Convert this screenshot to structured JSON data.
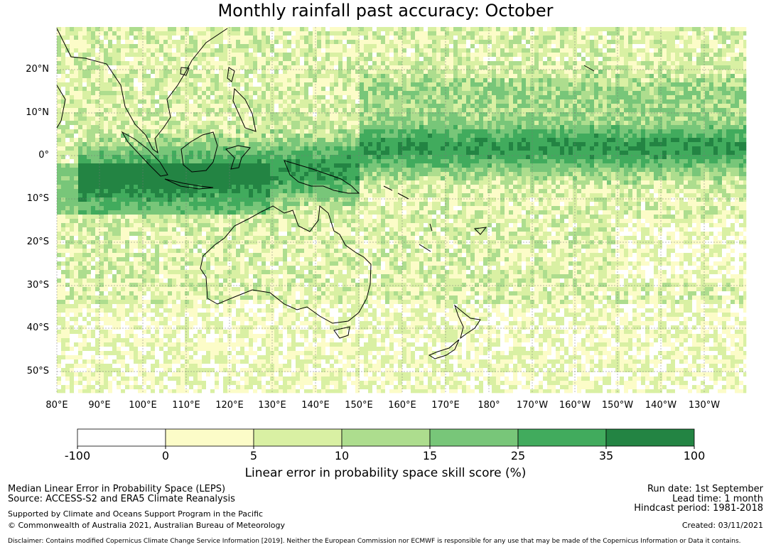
{
  "title": "Monthly rainfall past accuracy: October",
  "latitude_labels": [
    "20°N",
    "10°N",
    "0°",
    "10°S",
    "20°S",
    "30°S",
    "40°S",
    "50°S"
  ],
  "longitude_labels": [
    "80°E",
    "90°E",
    "100°E",
    "110°E",
    "120°E",
    "130°E",
    "140°E",
    "150°E",
    "160°E",
    "170°E",
    "180°",
    "170°W",
    "160°W",
    "150°W",
    "140°W",
    "130°W"
  ],
  "colorbar": {
    "title": "Linear error in probability space skill score (%)",
    "ticks": [
      "-100",
      "0",
      "5",
      "10",
      "15",
      "25",
      "35",
      "100"
    ],
    "colors": [
      "#ffffff",
      "#fcfcc8",
      "#d9f0a3",
      "#addd8e",
      "#78c679",
      "#41ab5d",
      "#238443"
    ]
  },
  "footer": {
    "line1": "Median Linear Error in Probability Space (LEPS)",
    "line2": "Source: ACCESS-S2 and ERA5 Climate Reanalysis",
    "line3": "Supported by Climate and Oceans Support Program in the Pacific",
    "line4": "© Commonwealth of Australia 2021, Australian Bureau of Meteorology",
    "run_date": "Run date: 1st September",
    "lead_time": "Lead time: 1 month",
    "hindcast": "Hindcast period: 1981-2018",
    "created": "Created: 03/11/2021",
    "disclaimer": "Disclaimer: Contains modified Copernicus Climate Change Service Information [2019]. Neither the European Commission nor ECMWF is responsible for any use that may be made of the Copernicus Information or Data it contains."
  }
}
